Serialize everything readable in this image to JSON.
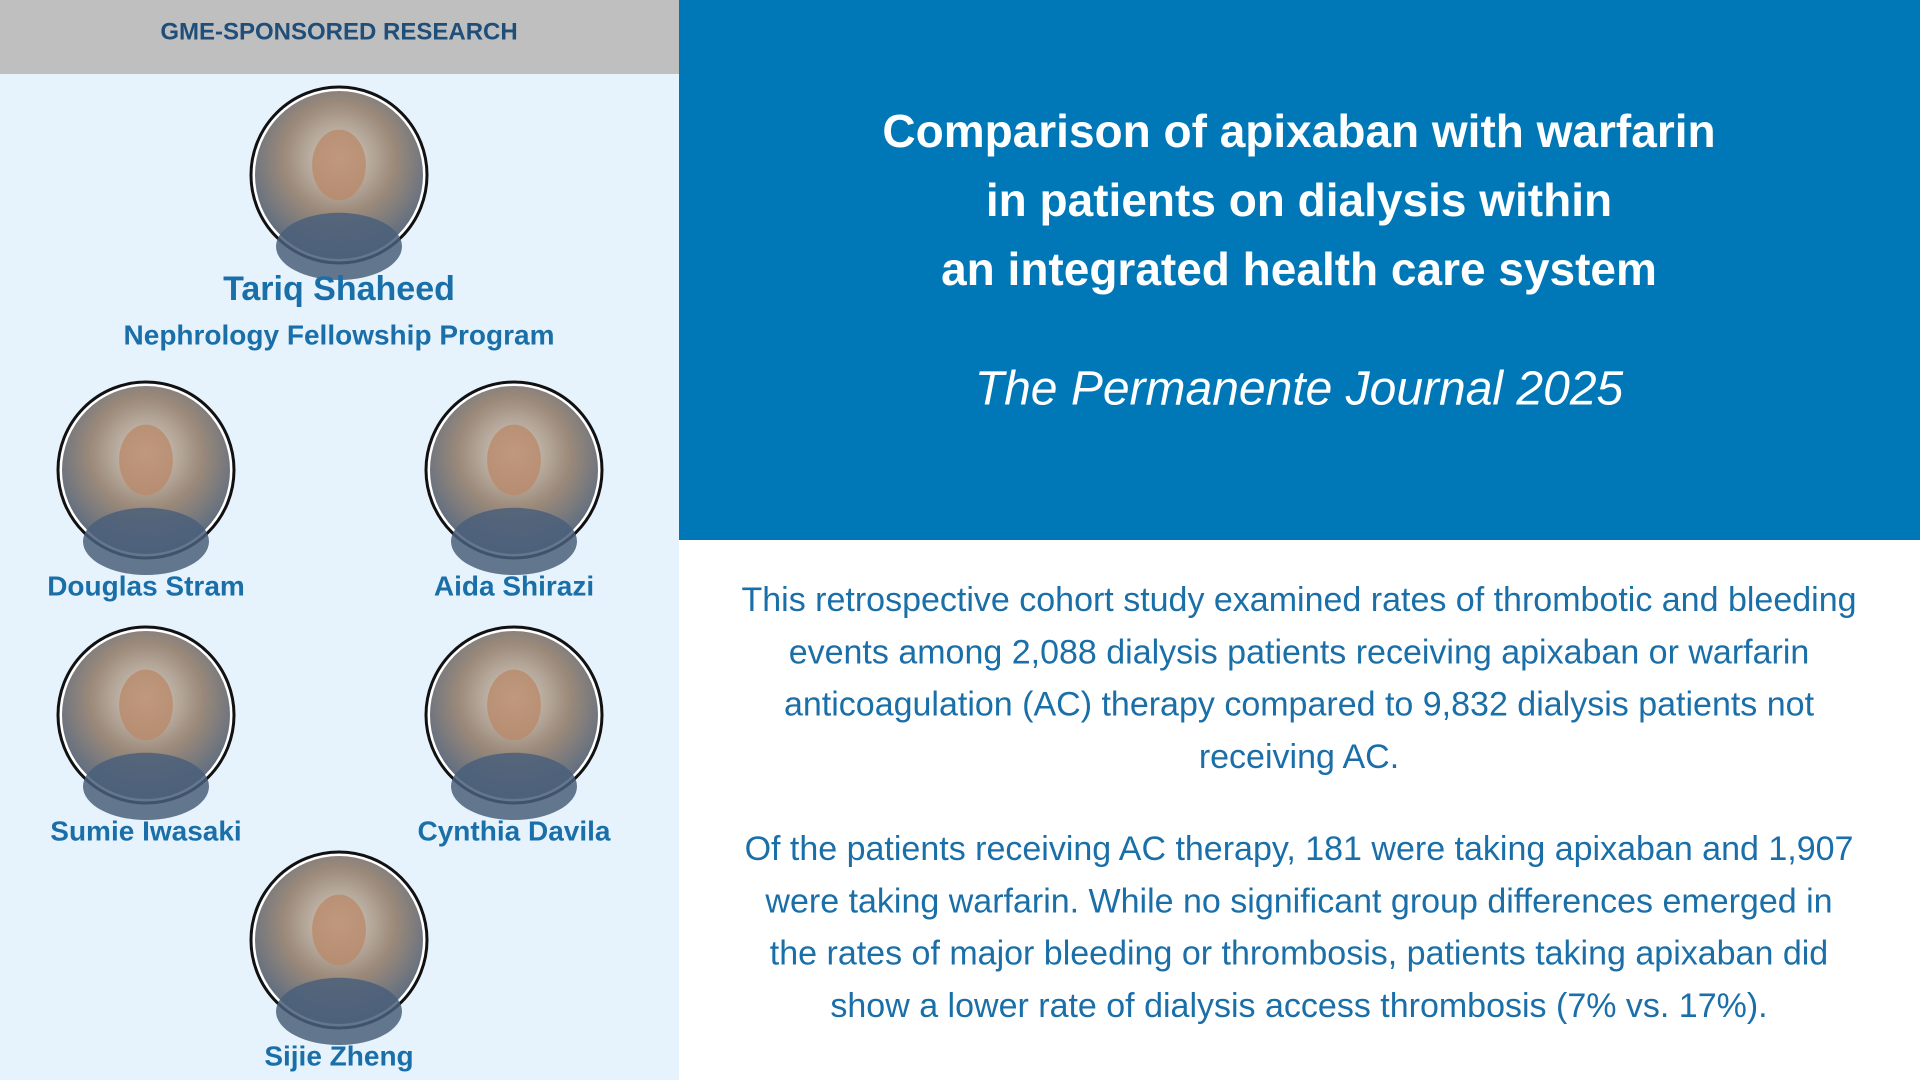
{
  "header": {
    "label": "GME-SPONSORED RESEARCH"
  },
  "lead": {
    "name": "Tariq Shaheed",
    "program": "Nephrology Fellowship Program"
  },
  "coauthors": [
    "Douglas Stram",
    "Aida Shirazi",
    "Sumie Iwasaki",
    "Cynthia Davila",
    "Sijie Zheng"
  ],
  "title": {
    "lines": [
      "Comparison of apixaban with warfarin",
      "in patients on dialysis within",
      "an integrated health care system"
    ],
    "journal": "The Permanente Journal 2025"
  },
  "summary": {
    "paragraphs": [
      [
        "This retrospective cohort study examined rates of thrombotic and bleeding",
        "events among 2,088 dialysis patients receiving apixaban or warfarin",
        "anticoagulation (AC) therapy compared to 9,832 dialysis patients not",
        "receiving AC."
      ],
      [
        "Of the patients receiving AC therapy, 181 were taking apixaban and 1,907",
        "were taking warfarin. While no significant group differences emerged in",
        "the rates of major bleeding or thrombosis, patients taking apixaban did",
        "show a lower rate of dialysis access thrombosis (7% vs. 17%)."
      ]
    ]
  }
}
